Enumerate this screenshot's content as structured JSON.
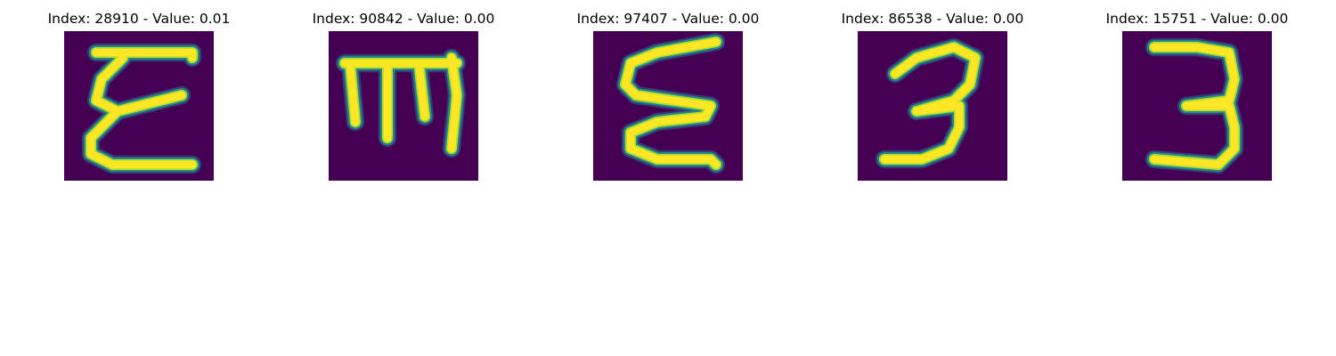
{
  "panels": [
    {
      "index": "28910",
      "value": "0.01",
      "title": "Index: 28910 - Value: 0.01",
      "glyph": "epsilon-like-stroke"
    },
    {
      "index": "90842",
      "value": "0.00",
      "title": "Index: 90842 - Value: 0.00",
      "glyph": "m-like-stroke"
    },
    {
      "index": "97407",
      "value": "0.00",
      "title": "Index: 97407 - Value: 0.00",
      "glyph": "sigma-like-stroke"
    },
    {
      "index": "86538",
      "value": "0.00",
      "title": "Index: 86538 - Value: 0.00",
      "glyph": "three-like-stroke"
    },
    {
      "index": "15751",
      "value": "0.00",
      "title": "Index: 15751 - Value: 0.00",
      "glyph": "three-like-stroke"
    }
  ],
  "colors": {
    "background": "#440154",
    "stroke_core": "#fde725",
    "stroke_mid": "#b5de2b",
    "stroke_edge": "#21918c",
    "stroke_halo": "#31688e"
  }
}
